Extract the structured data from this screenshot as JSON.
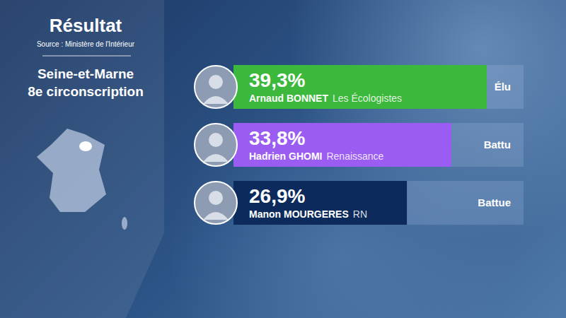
{
  "chart_data": {
    "type": "bar",
    "orientation": "horizontal",
    "title": "Résultat",
    "subtitle": "Source : Ministère de l'Intérieur",
    "annotations": [
      "Seine-et-Marne",
      "8e circonscription"
    ],
    "categories": [
      "Arnaud BONNET",
      "Hadrien GHOMI",
      "Manon MOURGERES"
    ],
    "parties": [
      "Les Écologistes",
      "Renaissance",
      "RN"
    ],
    "status": [
      "Élu",
      "Battu",
      "Battue"
    ],
    "values": [
      39.3,
      33.8,
      26.9
    ],
    "value_labels": [
      "39,3%",
      "33,8%",
      "26,9%"
    ],
    "colors": [
      "#3cb83c",
      "#9b5cf2",
      "#0c2b5c"
    ],
    "xlim": [
      0,
      45
    ],
    "data_labels": true,
    "tick_labels": false,
    "grid": false
  }
}
